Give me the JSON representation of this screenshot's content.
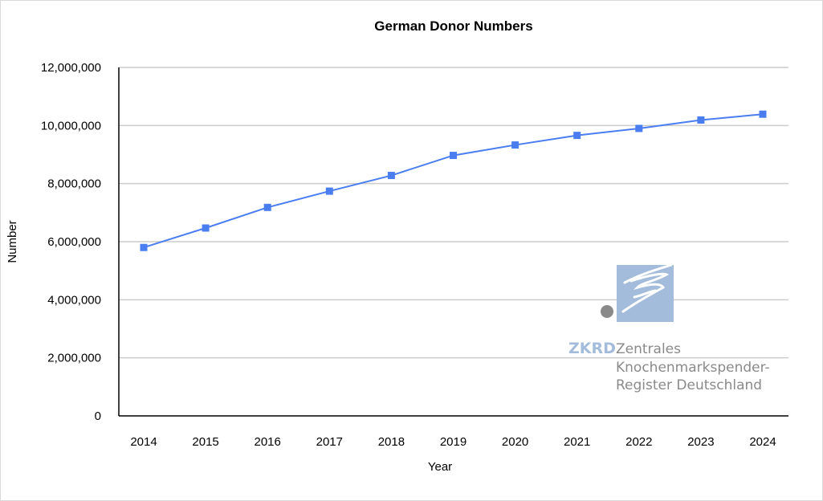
{
  "chart_data": {
    "type": "line",
    "title": "German Donor Numbers",
    "xlabel": "Year",
    "ylabel": "Number",
    "categories": [
      "2014",
      "2015",
      "2016",
      "2017",
      "2018",
      "2019",
      "2020",
      "2021",
      "2022",
      "2023",
      "2024"
    ],
    "series": [
      {
        "values": [
          5800000,
          6470000,
          7180000,
          7740000,
          8280000,
          8970000,
          9330000,
          9660000,
          9900000,
          10190000,
          10390000
        ]
      }
    ],
    "ylim": [
      0,
      12000000
    ],
    "yticks": [
      0,
      2000000,
      4000000,
      6000000,
      8000000,
      10000000,
      12000000
    ],
    "ytick_labels": [
      "0",
      "2,000,000",
      "4,000,000",
      "6,000,000",
      "8,000,000",
      "10,000,000",
      "12,000,000"
    ],
    "grid": true,
    "legend": "none",
    "colors": {
      "line": "#4a7ef0",
      "grid": "#cccccc",
      "axis": "#000000"
    }
  },
  "logo": {
    "abbr": "ZKRD",
    "line1": "Zentrales",
    "line2": "Knochenmarkspender-",
    "line3": "Register Deutschland",
    "colors": {
      "box": "#a4bcdb",
      "dot": "#8a8a8a"
    }
  }
}
